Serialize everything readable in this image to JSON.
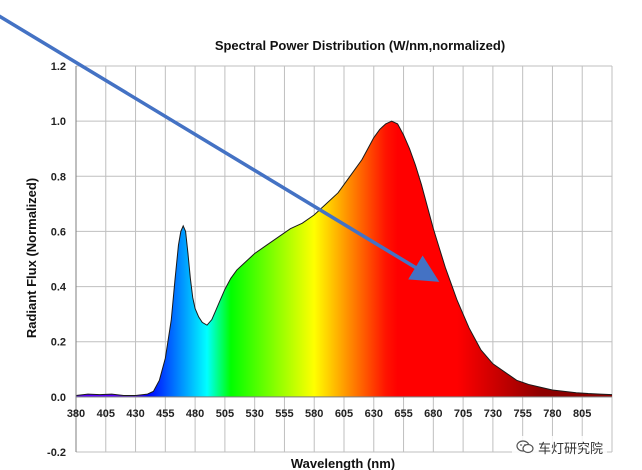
{
  "chart_data": {
    "type": "area",
    "title": "Spectral Power Distribution (W/nm,normalized)",
    "xlabel": "Wavelength (nm)",
    "ylabel": "Radiant Flux (Normalized)",
    "xlim": [
      380,
      830
    ],
    "ylim": [
      -0.2,
      1.2
    ],
    "x_ticks": [
      "380",
      "405",
      "430",
      "455",
      "480",
      "505",
      "530",
      "555",
      "580",
      "605",
      "630",
      "655",
      "680",
      "705",
      "730",
      "755",
      "780",
      "805"
    ],
    "y_ticks": [
      "-0.2",
      "0.0",
      "0.2",
      "0.4",
      "0.6",
      "0.8",
      "1.0",
      "1.2"
    ],
    "grid": true,
    "fill": "spectrum-colored gradient by wavelength",
    "x": [
      380,
      390,
      400,
      410,
      420,
      430,
      440,
      445,
      450,
      455,
      460,
      463,
      466,
      468,
      470,
      472,
      474,
      476,
      478,
      480,
      483,
      486,
      490,
      494,
      497,
      500,
      505,
      510,
      515,
      520,
      525,
      530,
      540,
      550,
      560,
      570,
      580,
      590,
      600,
      610,
      620,
      625,
      630,
      635,
      640,
      645,
      650,
      655,
      660,
      665,
      670,
      675,
      680,
      685,
      690,
      695,
      700,
      705,
      710,
      715,
      720,
      730,
      740,
      750,
      760,
      770,
      780,
      790,
      800,
      810,
      820,
      830
    ],
    "y": [
      0.005,
      0.01,
      0.008,
      0.01,
      0.005,
      0.005,
      0.01,
      0.02,
      0.06,
      0.14,
      0.28,
      0.42,
      0.55,
      0.6,
      0.62,
      0.6,
      0.52,
      0.43,
      0.36,
      0.32,
      0.29,
      0.27,
      0.26,
      0.28,
      0.31,
      0.34,
      0.39,
      0.43,
      0.46,
      0.48,
      0.5,
      0.52,
      0.55,
      0.58,
      0.61,
      0.63,
      0.66,
      0.7,
      0.74,
      0.8,
      0.86,
      0.9,
      0.94,
      0.97,
      0.99,
      1.0,
      0.99,
      0.95,
      0.9,
      0.84,
      0.77,
      0.69,
      0.61,
      0.54,
      0.47,
      0.41,
      0.35,
      0.3,
      0.25,
      0.21,
      0.17,
      0.12,
      0.09,
      0.06,
      0.045,
      0.035,
      0.025,
      0.02,
      0.015,
      0.012,
      0.01,
      0.008
    ]
  },
  "annotation": {
    "type": "arrow",
    "color": "#4472C4",
    "from": [
      270,
      1.5
    ],
    "to": [
      680,
      0.43
    ]
  },
  "watermark": {
    "icon": "wechat-icon",
    "text": "车灯研究院"
  }
}
